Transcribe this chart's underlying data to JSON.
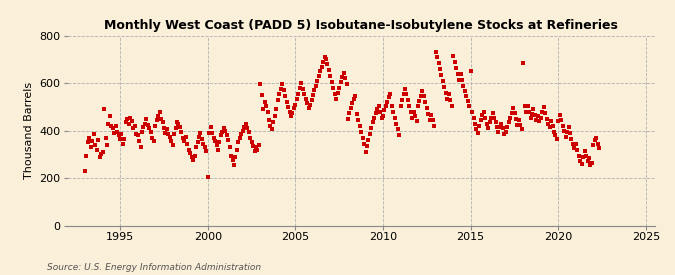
{
  "title": "Monthly West Coast (PADD 5) Isobutane-Isobutylene Stocks at Refineries",
  "ylabel": "Thousand Barrels",
  "source": "Source: U.S. Energy Information Administration",
  "background_color": "#faefd8",
  "plot_bg_color": "#faefd8",
  "grid_color": "#b0b0b0",
  "marker_color": "#cc0000",
  "marker_size": 6,
  "xlim": [
    1992.0,
    2025.5
  ],
  "ylim": [
    0,
    800
  ],
  "yticks": [
    0,
    200,
    400,
    600,
    800
  ],
  "xticks": [
    1995,
    2000,
    2005,
    2010,
    2015,
    2020,
    2025
  ],
  "data": [
    [
      1993.0,
      228
    ],
    [
      1993.08,
      295
    ],
    [
      1993.17,
      350
    ],
    [
      1993.25,
      370
    ],
    [
      1993.33,
      330
    ],
    [
      1993.42,
      355
    ],
    [
      1993.5,
      385
    ],
    [
      1993.58,
      340
    ],
    [
      1993.67,
      320
    ],
    [
      1993.75,
      360
    ],
    [
      1993.83,
      290
    ],
    [
      1993.92,
      300
    ],
    [
      1994.0,
      310
    ],
    [
      1994.08,
      490
    ],
    [
      1994.17,
      370
    ],
    [
      1994.25,
      340
    ],
    [
      1994.33,
      430
    ],
    [
      1994.42,
      460
    ],
    [
      1994.5,
      420
    ],
    [
      1994.58,
      410
    ],
    [
      1994.67,
      390
    ],
    [
      1994.75,
      420
    ],
    [
      1994.83,
      395
    ],
    [
      1994.92,
      380
    ],
    [
      1995.0,
      365
    ],
    [
      1995.08,
      385
    ],
    [
      1995.17,
      345
    ],
    [
      1995.25,
      365
    ],
    [
      1995.33,
      435
    ],
    [
      1995.42,
      450
    ],
    [
      1995.5,
      430
    ],
    [
      1995.58,
      455
    ],
    [
      1995.67,
      440
    ],
    [
      1995.75,
      410
    ],
    [
      1995.83,
      420
    ],
    [
      1995.92,
      385
    ],
    [
      1996.0,
      380
    ],
    [
      1996.08,
      355
    ],
    [
      1996.17,
      330
    ],
    [
      1996.25,
      395
    ],
    [
      1996.33,
      415
    ],
    [
      1996.42,
      430
    ],
    [
      1996.5,
      450
    ],
    [
      1996.58,
      425
    ],
    [
      1996.67,
      410
    ],
    [
      1996.75,
      395
    ],
    [
      1996.83,
      370
    ],
    [
      1996.92,
      355
    ],
    [
      1997.0,
      420
    ],
    [
      1997.08,
      445
    ],
    [
      1997.17,
      460
    ],
    [
      1997.25,
      480
    ],
    [
      1997.33,
      450
    ],
    [
      1997.42,
      435
    ],
    [
      1997.5,
      410
    ],
    [
      1997.58,
      390
    ],
    [
      1997.67,
      405
    ],
    [
      1997.75,
      385
    ],
    [
      1997.83,
      375
    ],
    [
      1997.92,
      355
    ],
    [
      1998.0,
      340
    ],
    [
      1998.08,
      385
    ],
    [
      1998.17,
      410
    ],
    [
      1998.25,
      435
    ],
    [
      1998.33,
      430
    ],
    [
      1998.42,
      415
    ],
    [
      1998.5,
      395
    ],
    [
      1998.58,
      370
    ],
    [
      1998.67,
      355
    ],
    [
      1998.75,
      375
    ],
    [
      1998.83,
      345
    ],
    [
      1998.92,
      320
    ],
    [
      1999.0,
      305
    ],
    [
      1999.08,
      290
    ],
    [
      1999.17,
      275
    ],
    [
      1999.25,
      295
    ],
    [
      1999.33,
      330
    ],
    [
      1999.42,
      350
    ],
    [
      1999.5,
      375
    ],
    [
      1999.58,
      390
    ],
    [
      1999.67,
      365
    ],
    [
      1999.75,
      345
    ],
    [
      1999.83,
      330
    ],
    [
      1999.92,
      315
    ],
    [
      2000.0,
      205
    ],
    [
      2000.08,
      390
    ],
    [
      2000.17,
      415
    ],
    [
      2000.25,
      390
    ],
    [
      2000.33,
      370
    ],
    [
      2000.42,
      355
    ],
    [
      2000.5,
      340
    ],
    [
      2000.58,
      320
    ],
    [
      2000.67,
      350
    ],
    [
      2000.75,
      380
    ],
    [
      2000.83,
      395
    ],
    [
      2000.92,
      410
    ],
    [
      2001.0,
      400
    ],
    [
      2001.08,
      380
    ],
    [
      2001.17,
      360
    ],
    [
      2001.25,
      330
    ],
    [
      2001.33,
      295
    ],
    [
      2001.42,
      275
    ],
    [
      2001.5,
      255
    ],
    [
      2001.58,
      290
    ],
    [
      2001.67,
      320
    ],
    [
      2001.75,
      350
    ],
    [
      2001.83,
      370
    ],
    [
      2001.92,
      385
    ],
    [
      2002.0,
      400
    ],
    [
      2002.08,
      415
    ],
    [
      2002.17,
      430
    ],
    [
      2002.25,
      410
    ],
    [
      2002.33,
      395
    ],
    [
      2002.42,
      370
    ],
    [
      2002.5,
      350
    ],
    [
      2002.58,
      335
    ],
    [
      2002.67,
      315
    ],
    [
      2002.75,
      330
    ],
    [
      2002.83,
      320
    ],
    [
      2002.92,
      340
    ],
    [
      2003.0,
      595
    ],
    [
      2003.08,
      550
    ],
    [
      2003.17,
      490
    ],
    [
      2003.25,
      520
    ],
    [
      2003.33,
      505
    ],
    [
      2003.42,
      480
    ],
    [
      2003.5,
      445
    ],
    [
      2003.58,
      420
    ],
    [
      2003.67,
      405
    ],
    [
      2003.75,
      435
    ],
    [
      2003.83,
      460
    ],
    [
      2003.92,
      490
    ],
    [
      2004.0,
      530
    ],
    [
      2004.08,
      555
    ],
    [
      2004.17,
      575
    ],
    [
      2004.25,
      595
    ],
    [
      2004.33,
      570
    ],
    [
      2004.42,
      545
    ],
    [
      2004.5,
      520
    ],
    [
      2004.58,
      500
    ],
    [
      2004.67,
      480
    ],
    [
      2004.75,
      460
    ],
    [
      2004.83,
      475
    ],
    [
      2004.92,
      495
    ],
    [
      2005.0,
      510
    ],
    [
      2005.08,
      535
    ],
    [
      2005.17,
      555
    ],
    [
      2005.25,
      580
    ],
    [
      2005.33,
      600
    ],
    [
      2005.42,
      575
    ],
    [
      2005.5,
      555
    ],
    [
      2005.58,
      535
    ],
    [
      2005.67,
      515
    ],
    [
      2005.75,
      495
    ],
    [
      2005.83,
      510
    ],
    [
      2005.92,
      530
    ],
    [
      2006.0,
      550
    ],
    [
      2006.08,
      570
    ],
    [
      2006.17,
      590
    ],
    [
      2006.25,
      610
    ],
    [
      2006.33,
      630
    ],
    [
      2006.42,
      650
    ],
    [
      2006.5,
      670
    ],
    [
      2006.58,
      690
    ],
    [
      2006.67,
      710
    ],
    [
      2006.75,
      700
    ],
    [
      2006.83,
      680
    ],
    [
      2006.92,
      655
    ],
    [
      2007.0,
      630
    ],
    [
      2007.08,
      605
    ],
    [
      2007.17,
      580
    ],
    [
      2007.25,
      555
    ],
    [
      2007.33,
      535
    ],
    [
      2007.42,
      560
    ],
    [
      2007.5,
      580
    ],
    [
      2007.58,
      605
    ],
    [
      2007.67,
      625
    ],
    [
      2007.75,
      645
    ],
    [
      2007.83,
      620
    ],
    [
      2007.92,
      595
    ],
    [
      2008.0,
      450
    ],
    [
      2008.08,
      475
    ],
    [
      2008.17,
      495
    ],
    [
      2008.25,
      515
    ],
    [
      2008.33,
      535
    ],
    [
      2008.42,
      545
    ],
    [
      2008.5,
      470
    ],
    [
      2008.58,
      445
    ],
    [
      2008.67,
      420
    ],
    [
      2008.75,
      395
    ],
    [
      2008.83,
      370
    ],
    [
      2008.92,
      345
    ],
    [
      2009.0,
      310
    ],
    [
      2009.08,
      335
    ],
    [
      2009.17,
      360
    ],
    [
      2009.25,
      385
    ],
    [
      2009.33,
      410
    ],
    [
      2009.42,
      435
    ],
    [
      2009.5,
      455
    ],
    [
      2009.58,
      475
    ],
    [
      2009.67,
      490
    ],
    [
      2009.75,
      505
    ],
    [
      2009.83,
      480
    ],
    [
      2009.92,
      455
    ],
    [
      2010.0,
      460
    ],
    [
      2010.08,
      485
    ],
    [
      2010.17,
      505
    ],
    [
      2010.25,
      520
    ],
    [
      2010.33,
      540
    ],
    [
      2010.42,
      555
    ],
    [
      2010.5,
      505
    ],
    [
      2010.58,
      480
    ],
    [
      2010.67,
      455
    ],
    [
      2010.75,
      430
    ],
    [
      2010.83,
      405
    ],
    [
      2010.92,
      380
    ],
    [
      2011.0,
      505
    ],
    [
      2011.08,
      530
    ],
    [
      2011.17,
      555
    ],
    [
      2011.25,
      575
    ],
    [
      2011.33,
      555
    ],
    [
      2011.42,
      530
    ],
    [
      2011.5,
      505
    ],
    [
      2011.58,
      480
    ],
    [
      2011.67,
      455
    ],
    [
      2011.75,
      480
    ],
    [
      2011.83,
      460
    ],
    [
      2011.92,
      440
    ],
    [
      2012.0,
      505
    ],
    [
      2012.08,
      525
    ],
    [
      2012.17,
      545
    ],
    [
      2012.25,
      565
    ],
    [
      2012.33,
      545
    ],
    [
      2012.42,
      520
    ],
    [
      2012.5,
      495
    ],
    [
      2012.58,
      470
    ],
    [
      2012.67,
      445
    ],
    [
      2012.75,
      465
    ],
    [
      2012.83,
      445
    ],
    [
      2012.92,
      420
    ],
    [
      2013.0,
      730
    ],
    [
      2013.08,
      710
    ],
    [
      2013.17,
      685
    ],
    [
      2013.25,
      660
    ],
    [
      2013.33,
      635
    ],
    [
      2013.42,
      610
    ],
    [
      2013.5,
      585
    ],
    [
      2013.58,
      560
    ],
    [
      2013.67,
      535
    ],
    [
      2013.75,
      555
    ],
    [
      2013.83,
      530
    ],
    [
      2013.92,
      505
    ],
    [
      2014.0,
      715
    ],
    [
      2014.08,
      690
    ],
    [
      2014.17,
      665
    ],
    [
      2014.25,
      640
    ],
    [
      2014.33,
      615
    ],
    [
      2014.42,
      640
    ],
    [
      2014.5,
      615
    ],
    [
      2014.58,
      590
    ],
    [
      2014.67,
      565
    ],
    [
      2014.75,
      545
    ],
    [
      2014.83,
      525
    ],
    [
      2014.92,
      505
    ],
    [
      2015.0,
      650
    ],
    [
      2015.08,
      480
    ],
    [
      2015.17,
      455
    ],
    [
      2015.25,
      430
    ],
    [
      2015.33,
      405
    ],
    [
      2015.42,
      390
    ],
    [
      2015.5,
      420
    ],
    [
      2015.58,
      445
    ],
    [
      2015.67,
      465
    ],
    [
      2015.75,
      480
    ],
    [
      2015.83,
      455
    ],
    [
      2015.92,
      430
    ],
    [
      2016.0,
      410
    ],
    [
      2016.08,
      435
    ],
    [
      2016.17,
      455
    ],
    [
      2016.25,
      475
    ],
    [
      2016.33,
      455
    ],
    [
      2016.42,
      435
    ],
    [
      2016.5,
      415
    ],
    [
      2016.58,
      395
    ],
    [
      2016.67,
      415
    ],
    [
      2016.75,
      430
    ],
    [
      2016.83,
      410
    ],
    [
      2016.92,
      385
    ],
    [
      2017.0,
      395
    ],
    [
      2017.08,
      415
    ],
    [
      2017.17,
      435
    ],
    [
      2017.25,
      455
    ],
    [
      2017.33,
      475
    ],
    [
      2017.42,
      495
    ],
    [
      2017.5,
      475
    ],
    [
      2017.58,
      450
    ],
    [
      2017.67,
      425
    ],
    [
      2017.75,
      445
    ],
    [
      2017.83,
      425
    ],
    [
      2017.92,
      405
    ],
    [
      2018.0,
      685
    ],
    [
      2018.08,
      505
    ],
    [
      2018.17,
      480
    ],
    [
      2018.25,
      505
    ],
    [
      2018.33,
      480
    ],
    [
      2018.42,
      455
    ],
    [
      2018.5,
      470
    ],
    [
      2018.58,
      490
    ],
    [
      2018.67,
      465
    ],
    [
      2018.75,
      445
    ],
    [
      2018.83,
      460
    ],
    [
      2018.92,
      440
    ],
    [
      2019.0,
      455
    ],
    [
      2019.08,
      480
    ],
    [
      2019.17,
      500
    ],
    [
      2019.25,
      475
    ],
    [
      2019.33,
      450
    ],
    [
      2019.42,
      430
    ],
    [
      2019.5,
      415
    ],
    [
      2019.58,
      440
    ],
    [
      2019.67,
      420
    ],
    [
      2019.75,
      395
    ],
    [
      2019.83,
      380
    ],
    [
      2019.92,
      365
    ],
    [
      2020.0,
      440
    ],
    [
      2020.08,
      465
    ],
    [
      2020.17,
      445
    ],
    [
      2020.25,
      420
    ],
    [
      2020.33,
      400
    ],
    [
      2020.42,
      375
    ],
    [
      2020.5,
      395
    ],
    [
      2020.58,
      415
    ],
    [
      2020.67,
      390
    ],
    [
      2020.75,
      365
    ],
    [
      2020.83,
      345
    ],
    [
      2020.92,
      325
    ],
    [
      2021.0,
      345
    ],
    [
      2021.08,
      320
    ],
    [
      2021.17,
      295
    ],
    [
      2021.25,
      270
    ],
    [
      2021.33,
      260
    ],
    [
      2021.42,
      290
    ],
    [
      2021.5,
      315
    ],
    [
      2021.58,
      295
    ],
    [
      2021.67,
      270
    ],
    [
      2021.75,
      285
    ],
    [
      2021.83,
      255
    ],
    [
      2021.92,
      265
    ],
    [
      2022.0,
      340
    ],
    [
      2022.08,
      360
    ],
    [
      2022.17,
      370
    ],
    [
      2022.25,
      345
    ],
    [
      2022.33,
      325
    ]
  ]
}
